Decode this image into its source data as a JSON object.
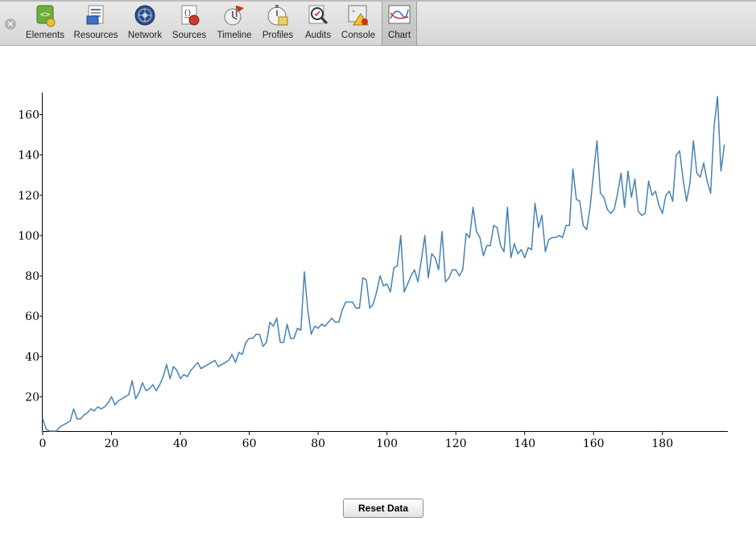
{
  "toolbar": {
    "close_label": "×",
    "items": [
      {
        "label": "Elements",
        "icon": "elements-icon"
      },
      {
        "label": "Resources",
        "icon": "resources-icon"
      },
      {
        "label": "Network",
        "icon": "network-icon"
      },
      {
        "label": "Sources",
        "icon": "sources-icon"
      },
      {
        "label": "Timeline",
        "icon": "timeline-icon"
      },
      {
        "label": "Profiles",
        "icon": "profiles-icon"
      },
      {
        "label": "Audits",
        "icon": "audits-icon"
      },
      {
        "label": "Console",
        "icon": "console-icon"
      },
      {
        "label": "Chart",
        "icon": "chart-icon",
        "selected": true
      }
    ]
  },
  "chart_data": {
    "type": "line",
    "title": "",
    "xlabel": "",
    "ylabel": "",
    "xlim": [
      0,
      199
    ],
    "ylim": [
      3,
      171
    ],
    "x_ticks": [
      0,
      20,
      40,
      60,
      80,
      100,
      120,
      140,
      160,
      180
    ],
    "y_ticks": [
      20,
      40,
      60,
      80,
      100,
      120,
      140,
      160
    ],
    "grid": false,
    "color": "#4682b4",
    "series": [
      {
        "x_start": 0,
        "values": [
          9,
          4,
          3,
          3,
          3,
          5,
          6,
          7,
          8,
          14,
          9,
          9,
          11,
          12,
          14,
          13,
          15,
          14,
          15,
          17,
          20,
          16,
          18,
          19,
          20,
          21,
          28,
          19,
          22,
          27,
          23,
          24,
          26,
          23,
          26,
          30,
          36,
          29,
          35,
          33,
          29,
          31,
          30,
          33,
          35,
          37,
          34,
          35,
          36,
          37,
          38,
          35,
          36,
          37,
          38,
          41,
          37,
          42,
          41,
          47,
          49,
          49,
          51,
          51,
          45,
          47,
          57,
          55,
          59,
          47,
          47,
          56,
          49,
          49,
          54,
          53,
          82,
          63,
          51,
          55,
          54,
          56,
          55,
          57,
          59,
          57,
          57,
          63,
          67,
          67,
          67,
          64,
          64,
          79,
          78,
          64,
          66,
          72,
          80,
          75,
          76,
          72,
          84,
          85,
          100,
          72,
          76,
          80,
          83,
          77,
          88,
          100,
          79,
          91,
          89,
          83,
          102,
          77,
          79,
          83,
          83,
          80,
          83,
          101,
          99,
          114,
          102,
          99,
          90,
          95,
          95,
          105,
          104,
          95,
          92,
          114,
          89,
          96,
          91,
          93,
          89,
          94,
          93,
          116,
          104,
          110,
          92,
          98,
          99,
          99,
          100,
          99,
          105,
          105,
          133,
          118,
          117,
          105,
          103,
          114,
          131,
          147,
          121,
          119,
          113,
          111,
          113,
          121,
          131,
          114,
          132,
          119,
          128,
          112,
          110,
          111,
          127,
          120,
          122,
          115,
          111,
          120,
          122,
          117,
          140,
          142,
          128,
          117,
          126,
          147,
          131,
          129,
          136,
          127,
          121,
          154,
          169,
          132,
          145
        ]
      }
    ]
  },
  "reset_button": {
    "label": "Reset Data"
  }
}
